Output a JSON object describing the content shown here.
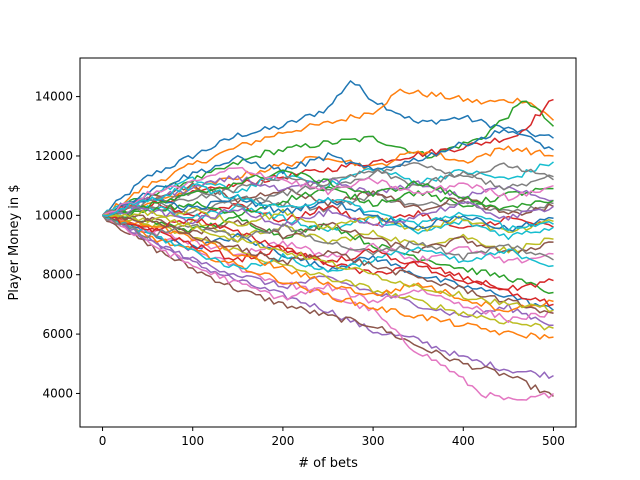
{
  "chart_data": {
    "type": "line",
    "title": "",
    "xlabel": "# of bets",
    "ylabel": "Player Money in $",
    "xlim": [
      -25,
      525
    ],
    "ylim": [
      2870,
      15300
    ],
    "xticks": [
      0,
      100,
      200,
      300,
      400,
      500
    ],
    "xtick_labels": [
      "0",
      "100",
      "200",
      "300",
      "400",
      "500"
    ],
    "yticks": [
      4000,
      6000,
      8000,
      10000,
      12000,
      14000
    ],
    "ytick_labels": [
      "4000",
      "6000",
      "8000",
      "10000",
      "12000",
      "14000"
    ],
    "grid": false,
    "legend": "none",
    "palette": [
      "#1f77b4",
      "#ff7f0e",
      "#2ca02c",
      "#d62728",
      "#9467bd",
      "#8c564b",
      "#e377c2",
      "#7f7f7f",
      "#bcbd22",
      "#17becf"
    ],
    "series": [
      {
        "x": [
          0,
          50,
          100,
          150,
          200,
          250,
          275,
          300,
          350,
          400,
          450,
          500
        ],
        "y": [
          10000,
          11300,
          12000,
          12700,
          13000,
          13600,
          14550,
          13900,
          13100,
          13300,
          12900,
          12600
        ]
      },
      {
        "x": [
          0,
          50,
          100,
          150,
          200,
          250,
          300,
          330,
          380,
          420,
          470,
          500
        ],
        "y": [
          10000,
          11000,
          11700,
          12300,
          12800,
          13100,
          13500,
          14200,
          14000,
          13800,
          13900,
          13200
        ]
      },
      {
        "x": [
          0,
          60,
          120,
          180,
          240,
          300,
          360,
          420,
          470,
          500
        ],
        "y": [
          10000,
          10800,
          11400,
          12100,
          12400,
          12600,
          12000,
          12600,
          13900,
          13000
        ]
      },
      {
        "x": [
          0,
          80,
          160,
          240,
          320,
          400,
          460,
          500
        ],
        "y": [
          10000,
          10600,
          11100,
          11500,
          11900,
          12300,
          12700,
          13900
        ]
      },
      {
        "x": [
          0,
          50,
          100,
          150,
          200,
          250,
          300,
          350,
          400,
          450,
          500
        ],
        "y": [
          10000,
          9200,
          8400,
          7800,
          7300,
          6800,
          6100,
          5800,
          5200,
          4800,
          4600
        ]
      },
      {
        "x": [
          0,
          50,
          100,
          150,
          200,
          250,
          300,
          350,
          400,
          450,
          500
        ],
        "y": [
          10000,
          9000,
          8200,
          7500,
          7000,
          6600,
          6300,
          5600,
          5000,
          4600,
          3900
        ]
      },
      {
        "x": [
          0,
          60,
          120,
          180,
          240,
          300,
          340,
          380,
          420,
          460,
          500
        ],
        "y": [
          10000,
          9300,
          8600,
          7900,
          7400,
          6800,
          5600,
          4900,
          4000,
          3700,
          4000
        ]
      },
      {
        "x": [
          0,
          50,
          100,
          150,
          200,
          250,
          300,
          350,
          400,
          450,
          500
        ],
        "y": [
          10000,
          10300,
          10100,
          10600,
          10400,
          10200,
          10700,
          10300,
          10500,
          10100,
          10400
        ]
      },
      {
        "x": [
          0,
          50,
          100,
          150,
          200,
          250,
          300,
          350,
          400,
          450,
          500
        ],
        "y": [
          10000,
          9600,
          9800,
          9300,
          9600,
          9100,
          9400,
          9000,
          9300,
          8800,
          9200
        ]
      },
      {
        "x": [
          0,
          50,
          100,
          150,
          200,
          250,
          300,
          350,
          400,
          450,
          500
        ],
        "y": [
          10000,
          10700,
          11200,
          10800,
          11400,
          11000,
          11600,
          11100,
          11500,
          11200,
          11800
        ]
      },
      {
        "x": [
          0,
          50,
          100,
          150,
          200,
          250,
          300,
          350,
          400,
          450,
          500
        ],
        "y": [
          10000,
          9400,
          8900,
          9300,
          8700,
          8200,
          8600,
          8000,
          7600,
          7300,
          6800
        ]
      },
      {
        "x": [
          0,
          50,
          100,
          150,
          200,
          250,
          300,
          350,
          400,
          450,
          500
        ],
        "y": [
          10000,
          10400,
          10900,
          11300,
          11700,
          12000,
          11600,
          12200,
          11800,
          12300,
          12000
        ]
      },
      {
        "x": [
          0,
          50,
          100,
          150,
          200,
          250,
          300,
          350,
          400,
          450,
          500
        ],
        "y": [
          10000,
          9800,
          9500,
          9900,
          9300,
          9700,
          9000,
          8600,
          8200,
          7900,
          7400
        ]
      },
      {
        "x": [
          0,
          50,
          100,
          150,
          200,
          250,
          300,
          350,
          400,
          450,
          500
        ],
        "y": [
          10000,
          10500,
          10000,
          10400,
          9800,
          10300,
          9700,
          10100,
          9500,
          9900,
          9600
        ]
      },
      {
        "x": [
          0,
          50,
          100,
          150,
          200,
          250,
          300,
          350,
          400,
          450,
          500
        ],
        "y": [
          10000,
          9200,
          8500,
          8000,
          7600,
          7900,
          7400,
          7000,
          6600,
          6900,
          6300
        ]
      },
      {
        "x": [
          0,
          50,
          100,
          150,
          200,
          250,
          300,
          350,
          400,
          450,
          500
        ],
        "y": [
          10000,
          10600,
          11000,
          10500,
          10900,
          10400,
          10800,
          10200,
          10600,
          10000,
          10300
        ]
      },
      {
        "x": [
          0,
          50,
          100,
          150,
          200,
          250,
          300,
          350,
          400,
          450,
          500
        ],
        "y": [
          10000,
          9500,
          9100,
          8700,
          9100,
          8600,
          9000,
          8500,
          8900,
          8400,
          8700
        ]
      },
      {
        "x": [
          0,
          50,
          100,
          150,
          200,
          250,
          300,
          350,
          400,
          450,
          500
        ],
        "y": [
          10000,
          10200,
          10600,
          10900,
          11300,
          10900,
          11400,
          11800,
          11300,
          11700,
          11200
        ]
      },
      {
        "x": [
          0,
          50,
          100,
          150,
          200,
          250,
          300,
          350,
          400,
          450,
          500
        ],
        "y": [
          10000,
          9700,
          9300,
          8800,
          8300,
          7900,
          7500,
          7100,
          6700,
          6400,
          6200
        ]
      },
      {
        "x": [
          0,
          50,
          100,
          150,
          200,
          250,
          300,
          350,
          400,
          450,
          500
        ],
        "y": [
          10000,
          10300,
          9900,
          10300,
          9900,
          9500,
          9900,
          9400,
          9800,
          9300,
          9600
        ]
      },
      {
        "x": [
          0,
          50,
          100,
          150,
          200,
          250,
          300,
          350,
          400,
          450,
          500
        ],
        "y": [
          10000,
          10800,
          11400,
          11900,
          11500,
          12000,
          11500,
          11900,
          12400,
          12900,
          12200
        ]
      },
      {
        "x": [
          0,
          50,
          100,
          150,
          200,
          250,
          300,
          350,
          400,
          450,
          500
        ],
        "y": [
          10000,
          9300,
          8800,
          8300,
          7800,
          7300,
          6900,
          6600,
          6300,
          6000,
          5900
        ]
      },
      {
        "x": [
          0,
          50,
          100,
          150,
          200,
          250,
          300,
          350,
          400,
          450,
          500
        ],
        "y": [
          10000,
          10100,
          10400,
          10000,
          10500,
          10900,
          10400,
          10800,
          10300,
          10700,
          10900
        ]
      },
      {
        "x": [
          0,
          50,
          100,
          150,
          200,
          250,
          300,
          350,
          400,
          450,
          500
        ],
        "y": [
          10000,
          9600,
          9000,
          8500,
          8900,
          8400,
          8000,
          8400,
          7900,
          7500,
          7800
        ]
      },
      {
        "x": [
          0,
          50,
          100,
          150,
          200,
          250,
          300,
          350,
          400,
          450,
          500
        ],
        "y": [
          10000,
          10500,
          10900,
          11300,
          10800,
          11200,
          10700,
          11100,
          10600,
          11000,
          10500
        ]
      },
      {
        "x": [
          0,
          50,
          100,
          150,
          200,
          250,
          300,
          350,
          400,
          450,
          500
        ],
        "y": [
          10000,
          9900,
          9400,
          9800,
          9300,
          9700,
          9200,
          8800,
          9200,
          8700,
          9100
        ]
      },
      {
        "x": [
          0,
          50,
          100,
          150,
          200,
          250,
          300,
          350,
          400,
          450,
          500
        ],
        "y": [
          10000,
          9100,
          8300,
          7700,
          7200,
          7600,
          7100,
          7500,
          7000,
          6500,
          6700
        ]
      },
      {
        "x": [
          0,
          50,
          100,
          150,
          200,
          250,
          300,
          350,
          400,
          450,
          500
        ],
        "y": [
          10000,
          10400,
          10800,
          10300,
          10700,
          11100,
          11500,
          11000,
          11400,
          10900,
          11300
        ]
      },
      {
        "x": [
          0,
          50,
          100,
          150,
          200,
          250,
          300,
          350,
          400,
          450,
          500
        ],
        "y": [
          10000,
          9800,
          10200,
          9700,
          10100,
          9600,
          10000,
          9500,
          9900,
          9400,
          9800
        ]
      },
      {
        "x": [
          0,
          50,
          100,
          150,
          200,
          250,
          300,
          350,
          400,
          450,
          500
        ],
        "y": [
          10000,
          9400,
          8800,
          8200,
          8600,
          8100,
          8500,
          8900,
          8400,
          8800,
          8300
        ]
      },
      {
        "x": [
          0,
          50,
          100,
          150,
          200,
          250,
          300,
          350,
          400,
          450,
          500
        ],
        "y": [
          10000,
          10600,
          10200,
          10600,
          10100,
          10500,
          10000,
          9600,
          10000,
          9500,
          9900
        ]
      },
      {
        "x": [
          0,
          50,
          100,
          150,
          200,
          250,
          300,
          350,
          400,
          450,
          500
        ],
        "y": [
          10000,
          9700,
          9200,
          8700,
          8200,
          7700,
          7300,
          7700,
          7200,
          6800,
          7100
        ]
      },
      {
        "x": [
          0,
          50,
          100,
          150,
          200,
          250,
          300,
          350,
          400,
          450,
          500
        ],
        "y": [
          10000,
          10300,
          10700,
          11100,
          11500,
          11100,
          10700,
          11100,
          10600,
          10200,
          10500
        ]
      },
      {
        "x": [
          0,
          50,
          100,
          150,
          200,
          250,
          300,
          350,
          400,
          450,
          500
        ],
        "y": [
          10000,
          9500,
          9900,
          9400,
          8900,
          8400,
          8800,
          8300,
          7800,
          7400,
          7000
        ]
      },
      {
        "x": [
          0,
          50,
          100,
          150,
          200,
          250,
          300,
          350,
          400,
          450,
          500
        ],
        "y": [
          10000,
          10200,
          9800,
          10200,
          9700,
          10100,
          9600,
          10000,
          10400,
          9900,
          10300
        ]
      },
      {
        "x": [
          0,
          50,
          100,
          150,
          200,
          250,
          300,
          350,
          400,
          450,
          500
        ],
        "y": [
          10000,
          9800,
          9300,
          8900,
          8400,
          8800,
          8300,
          7900,
          7500,
          7100,
          6700
        ]
      },
      {
        "x": [
          0,
          50,
          100,
          150,
          200,
          250,
          300,
          350,
          400,
          450,
          500
        ],
        "y": [
          10000,
          10700,
          11100,
          11600,
          11200,
          10800,
          11200,
          10700,
          11100,
          10600,
          11000
        ]
      },
      {
        "x": [
          0,
          50,
          100,
          150,
          200,
          250,
          300,
          350,
          400,
          450,
          500
        ],
        "y": [
          10000,
          9300,
          9700,
          9200,
          9600,
          9100,
          8700,
          9100,
          8600,
          9000,
          8500
        ]
      },
      {
        "x": [
          0,
          50,
          100,
          150,
          200,
          250,
          300,
          350,
          400,
          450,
          500
        ],
        "y": [
          10000,
          10100,
          9600,
          9200,
          8800,
          8400,
          8000,
          7600,
          7300,
          7000,
          6800
        ]
      },
      {
        "x": [
          0,
          50,
          100,
          150,
          200,
          250,
          300,
          350,
          400,
          450,
          500
        ],
        "y": [
          10000,
          10500,
          11000,
          10600,
          10200,
          10600,
          10100,
          9700,
          10100,
          9600,
          9700
        ]
      }
    ]
  }
}
